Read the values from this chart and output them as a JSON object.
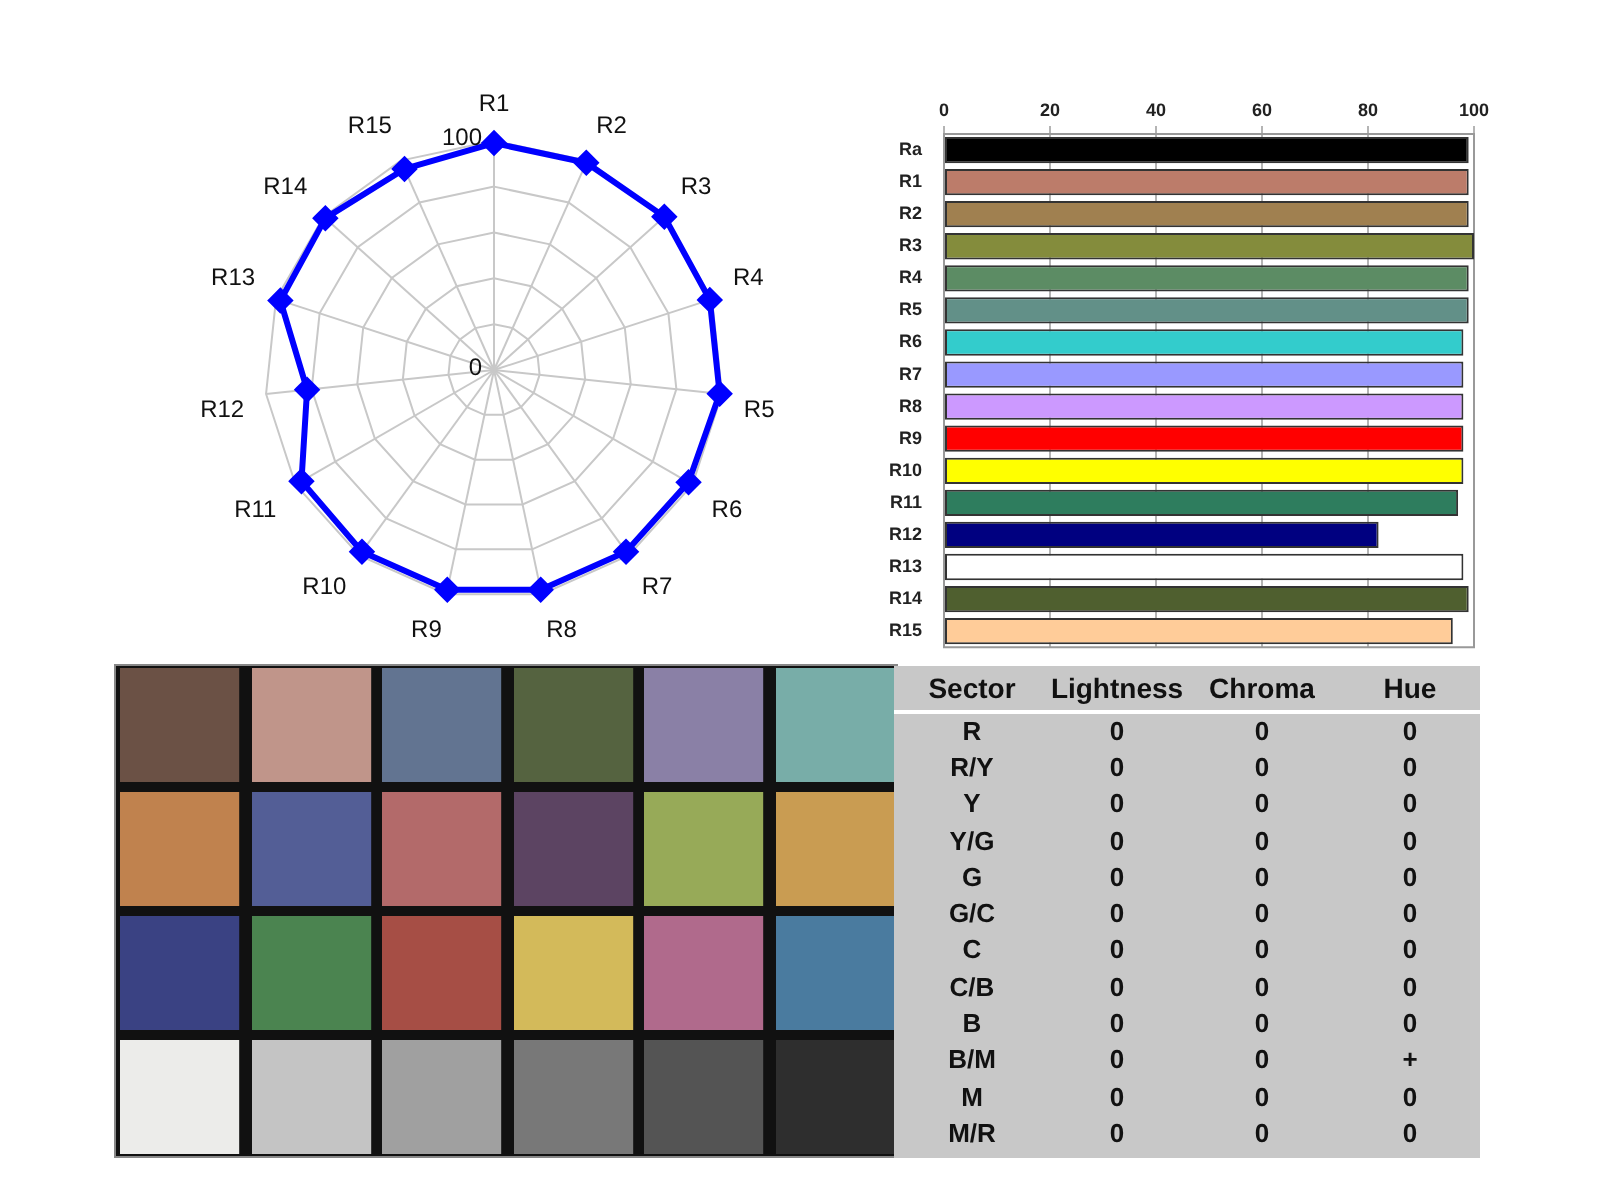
{
  "chart_data": [
    {
      "type": "radar",
      "categories": [
        "R1",
        "R2",
        "R3",
        "R4",
        "R5",
        "R6",
        "R7",
        "R8",
        "R9",
        "R10",
        "R11",
        "R12",
        "R13",
        "R14",
        "R15"
      ],
      "series": [
        {
          "color": "#0000ff",
          "values": [
            99,
            99,
            100,
            99,
            99,
            98,
            98,
            98,
            98,
            98,
            97,
            82,
            98,
            99,
            96
          ]
        }
      ],
      "ylim": [
        0,
        100
      ],
      "yticks": [
        0,
        100
      ],
      "grid": true,
      "marker": "diamond"
    },
    {
      "type": "bar",
      "orientation": "horizontal",
      "categories": [
        "Ra",
        "R1",
        "R2",
        "R3",
        "R4",
        "R5",
        "R6",
        "R7",
        "R8",
        "R9",
        "R10",
        "R11",
        "R12",
        "R13",
        "R14",
        "R15"
      ],
      "values": [
        99,
        99,
        99,
        100,
        99,
        99,
        98,
        98,
        98,
        98,
        98,
        97,
        82,
        98,
        99,
        96
      ],
      "colors": [
        "#000000",
        "#bc7c6a",
        "#a08050",
        "#848c3c",
        "#5c8c64",
        "#629088",
        "#33cccc",
        "#9999ff",
        "#cc99ff",
        "#ff0000",
        "#ffff00",
        "#2e7d5e",
        "#000080",
        "#ffffff",
        "#4f5f2f",
        "#ffcc99"
      ],
      "xlim": [
        0,
        100
      ],
      "xticks": [
        0,
        20,
        40,
        60,
        80,
        100
      ],
      "grid": "x"
    },
    {
      "type": "other",
      "ylabel": "Sector",
      "categories": [
        "Lightness",
        "Chroma",
        "Hue"
      ],
      "y_categories": [
        "R",
        "R/Y",
        "Y",
        "Y/G",
        "G",
        "G/C",
        "C",
        "C/B",
        "B",
        "B/M",
        "M",
        "M/R"
      ],
      "cell_labels": [
        [
          "0",
          "0",
          "0"
        ],
        [
          "0",
          "0",
          "0"
        ],
        [
          "0",
          "0",
          "0"
        ],
        [
          "0",
          "0",
          "0"
        ],
        [
          "0",
          "0",
          "0"
        ],
        [
          "0",
          "0",
          "0"
        ],
        [
          "0",
          "0",
          "0"
        ],
        [
          "0",
          "0",
          "0"
        ],
        [
          "0",
          "0",
          "0"
        ],
        [
          "0",
          "0",
          "+"
        ],
        [
          "0",
          "0",
          "0"
        ],
        [
          "0",
          "0",
          "0"
        ]
      ]
    }
  ]
}
